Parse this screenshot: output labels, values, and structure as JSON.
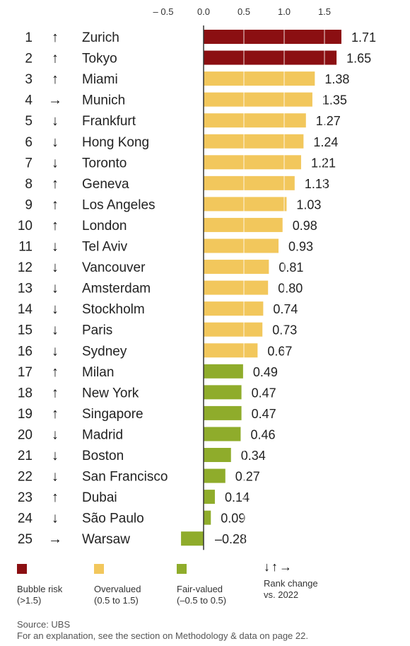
{
  "chart_data": {
    "type": "bar",
    "orientation": "horizontal",
    "x_ticks": [
      -0.5,
      0.0,
      0.5,
      1.0,
      1.5
    ],
    "x_tick_labels": [
      "– 0.5",
      "0.0",
      "0.5",
      "1.0",
      "1.5"
    ],
    "xlim": [
      -0.5,
      1.75
    ],
    "rows": [
      {
        "rank": "1",
        "change": "up",
        "city": "Zurich",
        "value": 1.71,
        "label": "1.71",
        "category": "bubble"
      },
      {
        "rank": "2",
        "change": "up",
        "city": "Tokyo",
        "value": 1.65,
        "label": "1.65",
        "category": "bubble"
      },
      {
        "rank": "3",
        "change": "up",
        "city": "Miami",
        "value": 1.38,
        "label": "1.38",
        "category": "over"
      },
      {
        "rank": "4",
        "change": "same",
        "city": "Munich",
        "value": 1.35,
        "label": "1.35",
        "category": "over"
      },
      {
        "rank": "5",
        "change": "down",
        "city": "Frankfurt",
        "value": 1.27,
        "label": "1.27",
        "category": "over"
      },
      {
        "rank": "6",
        "change": "down",
        "city": "Hong Kong",
        "value": 1.24,
        "label": "1.24",
        "category": "over"
      },
      {
        "rank": "7",
        "change": "down",
        "city": "Toronto",
        "value": 1.21,
        "label": "1.21",
        "category": "over"
      },
      {
        "rank": "8",
        "change": "up",
        "city": "Geneva",
        "value": 1.13,
        "label": "1.13",
        "category": "over"
      },
      {
        "rank": "9",
        "change": "up",
        "city": "Los Angeles",
        "value": 1.03,
        "label": "1.03",
        "category": "over"
      },
      {
        "rank": "10",
        "change": "up",
        "city": "London",
        "value": 0.98,
        "label": "0.98",
        "category": "over"
      },
      {
        "rank": "11",
        "change": "down",
        "city": "Tel Aviv",
        "value": 0.93,
        "label": "0.93",
        "category": "over"
      },
      {
        "rank": "12",
        "change": "down",
        "city": "Vancouver",
        "value": 0.81,
        "label": "0.81",
        "category": "over"
      },
      {
        "rank": "13",
        "change": "down",
        "city": "Amsterdam",
        "value": 0.8,
        "label": "0.80",
        "category": "over"
      },
      {
        "rank": "14",
        "change": "down",
        "city": "Stockholm",
        "value": 0.74,
        "label": "0.74",
        "category": "over"
      },
      {
        "rank": "15",
        "change": "down",
        "city": "Paris",
        "value": 0.73,
        "label": "0.73",
        "category": "over"
      },
      {
        "rank": "16",
        "change": "down",
        "city": "Sydney",
        "value": 0.67,
        "label": "0.67",
        "category": "over"
      },
      {
        "rank": "17",
        "change": "up",
        "city": "Milan",
        "value": 0.49,
        "label": "0.49",
        "category": "fair"
      },
      {
        "rank": "18",
        "change": "up",
        "city": "New York",
        "value": 0.47,
        "label": "0.47",
        "category": "fair"
      },
      {
        "rank": "19",
        "change": "up",
        "city": "Singapore",
        "value": 0.47,
        "label": "0.47",
        "category": "fair"
      },
      {
        "rank": "20",
        "change": "down",
        "city": "Madrid",
        "value": 0.46,
        "label": "0.46",
        "category": "fair"
      },
      {
        "rank": "21",
        "change": "down",
        "city": "Boston",
        "value": 0.34,
        "label": "0.34",
        "category": "fair"
      },
      {
        "rank": "22",
        "change": "down",
        "city": "San Francisco",
        "value": 0.27,
        "label": "0.27",
        "category": "fair"
      },
      {
        "rank": "23",
        "change": "up",
        "city": "Dubai",
        "value": 0.14,
        "label": "0.14",
        "category": "fair"
      },
      {
        "rank": "24",
        "change": "down",
        "city": "São Paulo",
        "value": 0.09,
        "label": "0.09",
        "category": "fair"
      },
      {
        "rank": "25",
        "change": "same",
        "city": "Warsaw",
        "value": -0.28,
        "label": "–0.28",
        "category": "fair"
      }
    ],
    "arrow_glyphs": {
      "up": "↑",
      "down": "↓",
      "same": "→"
    },
    "colors": {
      "bubble": "#8b0f12",
      "over": "#f2c75c",
      "fair": "#8fac2b",
      "axis": "#333333"
    }
  },
  "legend": {
    "bubble": {
      "line1": "Bubble risk",
      "line2": "(>1.5)"
    },
    "over": {
      "line1": "Overvalued",
      "line2": "(0.5 to 1.5)"
    },
    "fair": {
      "line1": "Fair-valued",
      "line2": "(–0.5 to 0.5)"
    },
    "rank": {
      "arrows": "↓↑→",
      "line1": "Rank change",
      "line2": "vs. 2022"
    }
  },
  "footer": {
    "source": "Source: UBS",
    "note": "For an explanation, see the section on Methodology & data on page 22."
  }
}
